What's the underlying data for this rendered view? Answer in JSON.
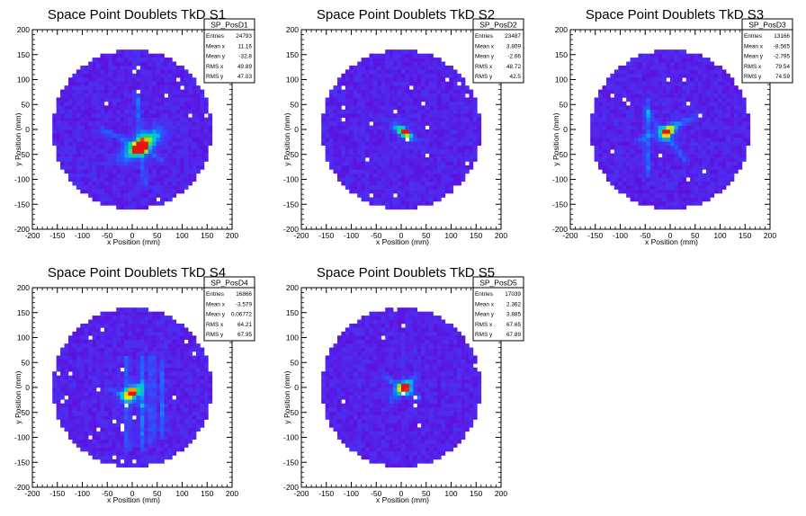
{
  "chart_data": [
    {
      "type": "heatmap",
      "title": "Space Point Doublets TkD S1",
      "xlabel": "x Position (mm)",
      "ylabel": "y Position (mm)",
      "xlim": [
        -200,
        200
      ],
      "ylim": [
        -200,
        200
      ],
      "xticks": [
        -200,
        -150,
        -100,
        -50,
        0,
        50,
        100,
        150,
        200
      ],
      "yticks": [
        -200,
        -150,
        -100,
        -50,
        0,
        50,
        100,
        150,
        200
      ],
      "stats": {
        "name": "SP_PosD1",
        "rows": [
          {
            "label": "Entries",
            "value": "24793"
          },
          {
            "label": "Mean x",
            "value": "11.16"
          },
          {
            "label": "Mean y",
            "value": "-32.8"
          },
          {
            "label": "RMS x",
            "value": "49.89"
          },
          {
            "label": "RMS y",
            "value": "47.03"
          }
        ]
      },
      "detector_radius": 160,
      "hotspots": [
        {
          "x": 20,
          "y": -30,
          "rx": 40,
          "ry": 16,
          "angle": 35,
          "intensity": 0.7
        },
        {
          "x": 15,
          "y": -35,
          "rx": 14,
          "ry": 10,
          "angle": 30,
          "intensity": 1.0
        }
      ],
      "lines": [
        {
          "x1": 10,
          "y1": 70,
          "x2": 25,
          "y2": -110
        },
        {
          "x1": -60,
          "y1": 0,
          "x2": 60,
          "y2": -60
        }
      ]
    },
    {
      "type": "heatmap",
      "title": "Space Point Doublets TkD S2",
      "xlabel": "x Position (mm)",
      "ylabel": "y Position (mm)",
      "xlim": [
        -200,
        200
      ],
      "ylim": [
        -200,
        200
      ],
      "xticks": [
        -200,
        -150,
        -100,
        -50,
        0,
        50,
        100,
        150,
        200
      ],
      "yticks": [
        -200,
        -150,
        -100,
        -50,
        0,
        50,
        100,
        150,
        200
      ],
      "stats": {
        "name": "SP_PosD2",
        "rows": [
          {
            "label": "Entries",
            "value": "23487"
          },
          {
            "label": "Mean x",
            "value": "3.809"
          },
          {
            "label": "Mean y",
            "value": "-2.66"
          },
          {
            "label": "RMS x",
            "value": "48.72"
          },
          {
            "label": "RMS y",
            "value": "42.5"
          }
        ]
      },
      "detector_radius": 160,
      "hotspots": [
        {
          "x": 5,
          "y": -5,
          "rx": 22,
          "ry": 8,
          "angle": -35,
          "intensity": 0.7
        },
        {
          "x": 8,
          "y": -5,
          "rx": 6,
          "ry": 5,
          "angle": 0,
          "intensity": 1.0
        }
      ],
      "lines": []
    },
    {
      "type": "heatmap",
      "title": "Space Point Doublets TkD S3",
      "xlabel": "x Position (mm)",
      "ylabel": "y Position (mm)",
      "xlim": [
        -200,
        200
      ],
      "ylim": [
        -200,
        200
      ],
      "xticks": [
        -200,
        -150,
        -100,
        -50,
        0,
        50,
        100,
        150,
        200
      ],
      "yticks": [
        -200,
        -150,
        -100,
        -50,
        0,
        50,
        100,
        150,
        200
      ],
      "stats": {
        "name": "SP_PosD3",
        "rows": [
          {
            "label": "Entries",
            "value": "13166"
          },
          {
            "label": "Mean x",
            "value": "-8.565"
          },
          {
            "label": "Mean y",
            "value": "-2.795"
          },
          {
            "label": "RMS x",
            "value": "79.54"
          },
          {
            "label": "RMS y",
            "value": "74.59"
          }
        ]
      },
      "detector_radius": 160,
      "hotspots": [
        {
          "x": -5,
          "y": -5,
          "rx": 18,
          "ry": 10,
          "angle": 40,
          "intensity": 0.75
        },
        {
          "x": -5,
          "y": -5,
          "rx": 6,
          "ry": 5,
          "angle": 0,
          "intensity": 1.0
        }
      ],
      "lines": [
        {
          "x1": -60,
          "y1": -20,
          "x2": 50,
          "y2": 25
        },
        {
          "x1": -50,
          "y1": 40,
          "x2": 30,
          "y2": -60
        },
        {
          "x1": -45,
          "y1": -90,
          "x2": -45,
          "y2": 60
        }
      ]
    },
    {
      "type": "heatmap",
      "title": "Space Point Doublets TkD S4",
      "xlabel": "x Position (mm)",
      "ylabel": "y Position (mm)",
      "xlim": [
        -200,
        200
      ],
      "ylim": [
        -200,
        200
      ],
      "xticks": [
        -200,
        -150,
        -100,
        -50,
        0,
        50,
        100,
        150,
        200
      ],
      "yticks": [
        -200,
        -150,
        -100,
        -50,
        0,
        50,
        100,
        150,
        200
      ],
      "stats": {
        "name": "SP_PosD4",
        "rows": [
          {
            "label": "Entries",
            "value": "16866"
          },
          {
            "label": "Mean x",
            "value": "-3.579"
          },
          {
            "label": "Mean y",
            "value": "0.06772"
          },
          {
            "label": "RMS x",
            "value": "64.21"
          },
          {
            "label": "RMS y",
            "value": "67.95"
          }
        ]
      },
      "detector_radius": 160,
      "hotspots": [
        {
          "x": 0,
          "y": -10,
          "rx": 20,
          "ry": 12,
          "angle": 30,
          "intensity": 0.8
        },
        {
          "x": 0,
          "y": -10,
          "rx": 6,
          "ry": 5,
          "angle": 0,
          "intensity": 1.0
        }
      ],
      "lines": [
        {
          "x1": -10,
          "y1": 60,
          "x2": -10,
          "y2": -120
        },
        {
          "x1": 20,
          "y1": 60,
          "x2": 20,
          "y2": -120
        },
        {
          "x1": 40,
          "y1": 60,
          "x2": 40,
          "y2": -110
        },
        {
          "x1": 60,
          "y1": 50,
          "x2": 60,
          "y2": -100
        },
        {
          "x1": -50,
          "y1": 0,
          "x2": 30,
          "y2": -40
        }
      ]
    },
    {
      "type": "heatmap",
      "title": "Space Point Doublets TkD S5",
      "xlabel": "x Position (mm)",
      "ylabel": "y Position (mm)",
      "xlim": [
        -200,
        200
      ],
      "ylim": [
        -200,
        200
      ],
      "xticks": [
        -200,
        -150,
        -100,
        -50,
        0,
        50,
        100,
        150,
        200
      ],
      "yticks": [
        -200,
        -150,
        -100,
        -50,
        0,
        50,
        100,
        150,
        200
      ],
      "stats": {
        "name": "SP_PosD5",
        "rows": [
          {
            "label": "Entries",
            "value": "17039"
          },
          {
            "label": "Mean x",
            "value": "2.362"
          },
          {
            "label": "Mean y",
            "value": "3.885"
          },
          {
            "label": "RMS x",
            "value": "67.65"
          },
          {
            "label": "RMS y",
            "value": "67.89"
          }
        ]
      },
      "detector_radius": 160,
      "hotspots": [
        {
          "x": 5,
          "y": 0,
          "rx": 16,
          "ry": 12,
          "angle": 20,
          "intensity": 0.75
        },
        {
          "x": 5,
          "y": 0,
          "rx": 6,
          "ry": 5,
          "angle": 0,
          "intensity": 1.0
        }
      ],
      "lines": [
        {
          "x1": -30,
          "y1": 20,
          "x2": 35,
          "y2": -20
        },
        {
          "x1": -20,
          "y1": -25,
          "x2": 30,
          "y2": 25
        }
      ]
    }
  ]
}
